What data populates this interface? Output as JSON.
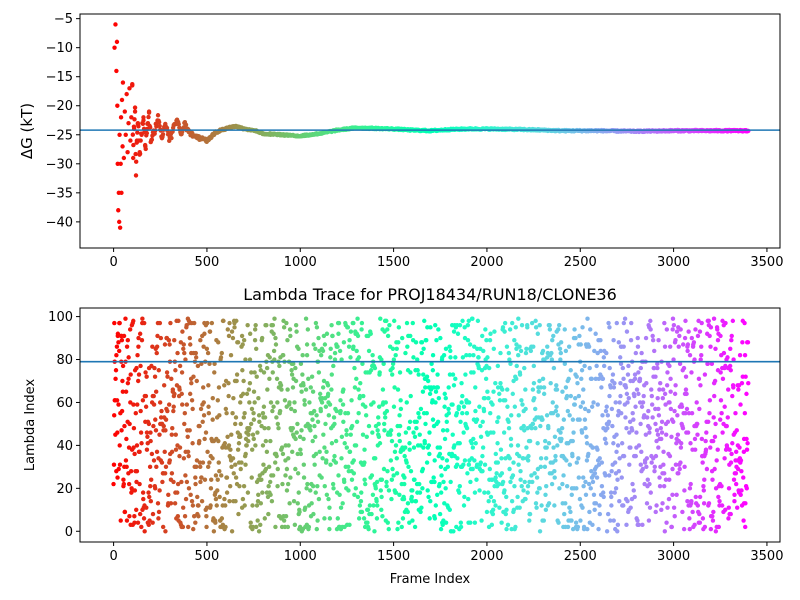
{
  "chart_data": [
    {
      "type": "scatter",
      "title": "",
      "xlabel": "",
      "ylabel": "ΔG (kT)",
      "xlim": [
        -180,
        3570
      ],
      "ylim": [
        -44.5,
        -4.2
      ],
      "xticks": [
        0,
        500,
        1000,
        1500,
        2000,
        2500,
        3000,
        3500
      ],
      "yticks": [
        -40,
        -35,
        -30,
        -25,
        -20,
        -15,
        -10,
        -5
      ],
      "reference_line_y": -24.2,
      "colormap": "rainbow",
      "x_range_of_points": [
        0,
        3400
      ],
      "series_description": "running free energy estimate per frame converging to about -24.3 kT",
      "points": [
        [
          5,
          -10
        ],
        [
          10,
          -6
        ],
        [
          15,
          -14
        ],
        [
          18,
          -9
        ],
        [
          20,
          -20
        ],
        [
          22,
          -30
        ],
        [
          25,
          -38
        ],
        [
          28,
          -35
        ],
        [
          30,
          -40
        ],
        [
          32,
          -25
        ],
        [
          35,
          -41
        ],
        [
          38,
          -30
        ],
        [
          40,
          -22
        ],
        [
          42,
          -35
        ],
        [
          45,
          -19
        ],
        [
          48,
          -27
        ],
        [
          50,
          -16
        ],
        [
          55,
          -29
        ],
        [
          60,
          -21
        ],
        [
          65,
          -25
        ],
        [
          70,
          -18
        ],
        [
          75,
          -28
        ],
        [
          80,
          -23
        ],
        [
          85,
          -17
        ],
        [
          90,
          -26
        ],
        [
          95,
          -22
        ],
        [
          100,
          -16.5
        ],
        [
          105,
          -29
        ],
        [
          110,
          -24
        ],
        [
          115,
          -21
        ],
        [
          120,
          -32
        ],
        [
          125,
          -26
        ],
        [
          130,
          -23
        ],
        [
          140,
          -28
        ],
        [
          150,
          -25
        ],
        [
          160,
          -22
        ],
        [
          170,
          -27
        ],
        [
          180,
          -24
        ],
        [
          190,
          -21
        ],
        [
          200,
          -26
        ],
        [
          220,
          -24
        ],
        [
          240,
          -22
        ],
        [
          260,
          -25.5
        ],
        [
          280,
          -23
        ],
        [
          300,
          -26
        ],
        [
          320,
          -24
        ],
        [
          340,
          -22.5
        ],
        [
          360,
          -25
        ],
        [
          380,
          -23
        ],
        [
          400,
          -24.5
        ],
        [
          450,
          -25.5
        ],
        [
          500,
          -26
        ],
        [
          550,
          -24.5
        ],
        [
          600,
          -24
        ],
        [
          650,
          -23.5
        ],
        [
          700,
          -24
        ],
        [
          750,
          -24.2
        ],
        [
          800,
          -24.8
        ],
        [
          900,
          -25
        ],
        [
          1000,
          -25.2
        ],
        [
          1100,
          -24.8
        ],
        [
          1200,
          -24.2
        ],
        [
          1300,
          -23.8
        ],
        [
          1400,
          -23.9
        ],
        [
          1500,
          -24
        ],
        [
          1600,
          -24.2
        ],
        [
          1700,
          -24.3
        ],
        [
          1800,
          -24.1
        ],
        [
          1900,
          -24
        ],
        [
          2000,
          -24
        ],
        [
          2200,
          -24.1
        ],
        [
          2400,
          -24.3
        ],
        [
          2600,
          -24.3
        ],
        [
          2800,
          -24.4
        ],
        [
          3000,
          -24.3
        ],
        [
          3200,
          -24.3
        ],
        [
          3400,
          -24.3
        ]
      ]
    },
    {
      "type": "scatter",
      "title": "Lambda Trace for PROJ18434/RUN18/CLONE36",
      "xlabel": "Frame Index",
      "ylabel": "Lambda Index",
      "xlim": [
        -180,
        3570
      ],
      "ylim": [
        -5,
        104
      ],
      "xticks": [
        0,
        500,
        1000,
        1500,
        2000,
        2500,
        3000,
        3500
      ],
      "yticks": [
        0,
        20,
        40,
        60,
        80,
        100
      ],
      "reference_line_y": 79,
      "colormap": "rainbow",
      "x_range_of_points": [
        0,
        3400
      ],
      "y_range_of_points": [
        0,
        99
      ],
      "n_points": 3400,
      "series_description": "lambda index visited per frame, uniformly spread 0-99"
    }
  ]
}
